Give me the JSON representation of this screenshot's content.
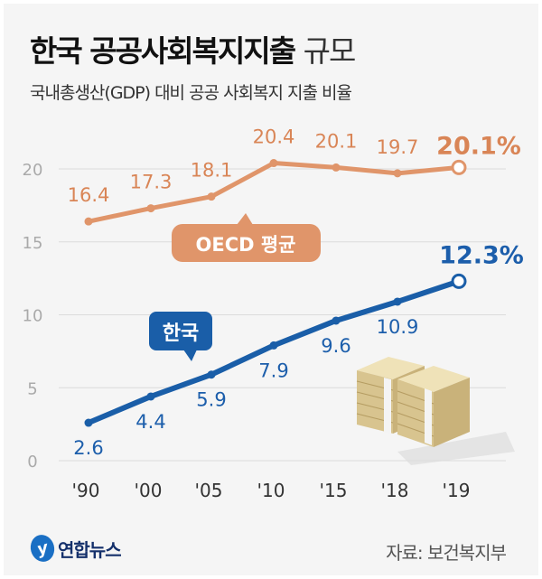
{
  "header": {
    "title_bold": "한국 공공사회복지지출",
    "title_light": "규모",
    "subtitle": "국내총생산(GDP) 대비 공공 사회복지 지출 비율"
  },
  "chart_data": {
    "type": "line",
    "categories": [
      "'90",
      "'00",
      "'05",
      "'10",
      "'15",
      "'18",
      "'19"
    ],
    "ylim": [
      0,
      20
    ],
    "yticks": [
      "0",
      "5",
      "10",
      "15",
      "20"
    ],
    "grid": true,
    "series": [
      {
        "name": "OECD 평균",
        "color": "#e0956a",
        "label_color": "#d98556",
        "values": [
          16.4,
          17.3,
          18.1,
          20.4,
          20.1,
          19.7,
          20.1
        ],
        "labels": [
          "16.4",
          "17.3",
          "18.1",
          "20.4",
          "20.1",
          "19.7",
          "20.1%"
        ]
      },
      {
        "name": "한국",
        "color": "#1a5ea8",
        "label_color": "#1c5eab",
        "values": [
          2.6,
          4.4,
          5.9,
          7.9,
          9.6,
          10.9,
          12.3
        ],
        "labels": [
          "2.6",
          "4.4",
          "5.9",
          "7.9",
          "9.6",
          "10.9",
          "12.3%"
        ]
      }
    ]
  },
  "footer": {
    "logo_text": "연합뉴스",
    "logo_mark": "y",
    "source": "자료: 보건복지부"
  }
}
